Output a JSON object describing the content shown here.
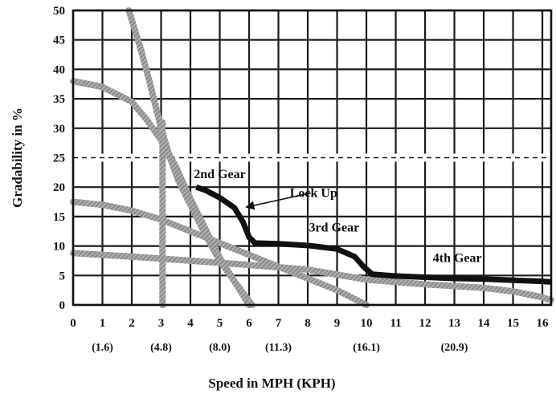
{
  "chart_data": {
    "type": "line",
    "title": "",
    "xlabel": "Speed in MPH (KPH)",
    "ylabel": "Gradability in %",
    "xlim": [
      0,
      16.3
    ],
    "ylim": [
      0,
      50
    ],
    "grid": true,
    "x_ticks": [
      "0",
      "1",
      "2",
      "3",
      "4",
      "5",
      "6",
      "7",
      "8",
      "9",
      "10",
      "11",
      "12",
      "13",
      "14",
      "15",
      "16"
    ],
    "y_ticks": [
      "0",
      "5",
      "10",
      "15",
      "20",
      "25",
      "30",
      "35",
      "40",
      "45",
      "50"
    ],
    "kph_labels": [
      {
        "x": 1,
        "text": "(1.6)"
      },
      {
        "x": 3,
        "text": "(4.8)"
      },
      {
        "x": 5,
        "text": "(8.0)"
      },
      {
        "x": 7,
        "text": "(11.3)"
      },
      {
        "x": 10,
        "text": "(16.1)"
      },
      {
        "x": 13,
        "text": "(20.9)"
      }
    ],
    "reference_line": {
      "y": 25,
      "style": "dashed"
    },
    "gray_curves": [
      {
        "x": [
          0,
          1,
          2,
          2.5,
          3,
          3.5,
          4,
          4.5,
          5,
          5.5,
          6
        ],
        "y": [
          38,
          37,
          34.5,
          31.5,
          28,
          23.5,
          18,
          13,
          8,
          4,
          0
        ]
      },
      {
        "x": [
          1.9,
          2.3,
          2.6,
          2.9,
          3.0,
          3.3,
          3.6,
          4.0,
          4.5,
          5.0,
          5.5,
          6.1
        ],
        "y": [
          50,
          43.5,
          38,
          32,
          30,
          25,
          21,
          17,
          12,
          7.5,
          4,
          0
        ]
      },
      {
        "x": [
          3.05,
          3.05
        ],
        "y": [
          0,
          31
        ]
      },
      {
        "x": [
          0,
          1,
          2,
          3,
          4,
          5,
          6,
          7,
          8,
          9,
          10
        ],
        "y": [
          17.5,
          17,
          16,
          14.5,
          12.5,
          10.5,
          8.5,
          6.5,
          4.5,
          2.5,
          0
        ]
      },
      {
        "x": [
          0,
          2,
          4,
          6,
          8,
          10,
          12,
          14,
          15,
          16,
          16.3
        ],
        "y": [
          8.8,
          8.2,
          7.5,
          6.8,
          6,
          4.3,
          3.5,
          2.9,
          2.3,
          1.3,
          0.8
        ]
      }
    ],
    "series": [
      {
        "x": [
          4.2,
          4.5,
          5.0,
          5.5,
          5.8,
          6.0,
          6.2,
          7,
          8,
          9,
          9.6,
          9.9,
          10.2,
          11,
          12,
          13,
          14,
          15,
          16,
          16.3
        ],
        "y": [
          20,
          19.5,
          18.2,
          16.5,
          14,
          11.5,
          10.5,
          10.4,
          10.1,
          9.5,
          8.2,
          6.5,
          5.2,
          4.9,
          4.7,
          4.5,
          4.4,
          4.2,
          4.0,
          3.9
        ]
      }
    ],
    "annotations": [
      {
        "text": "2nd Gear",
        "x": 5.0,
        "y": 21.5
      },
      {
        "text": "Lock Up",
        "x": 8.2,
        "y": 18.3
      },
      {
        "text": "3rd Gear",
        "x": 8.9,
        "y": 12.5
      },
      {
        "text": "4th Gear",
        "x": 13.1,
        "y": 7.3
      }
    ],
    "arrow": {
      "from": [
        8.1,
        19.0
      ],
      "to": [
        5.9,
        16.6
      ]
    }
  }
}
